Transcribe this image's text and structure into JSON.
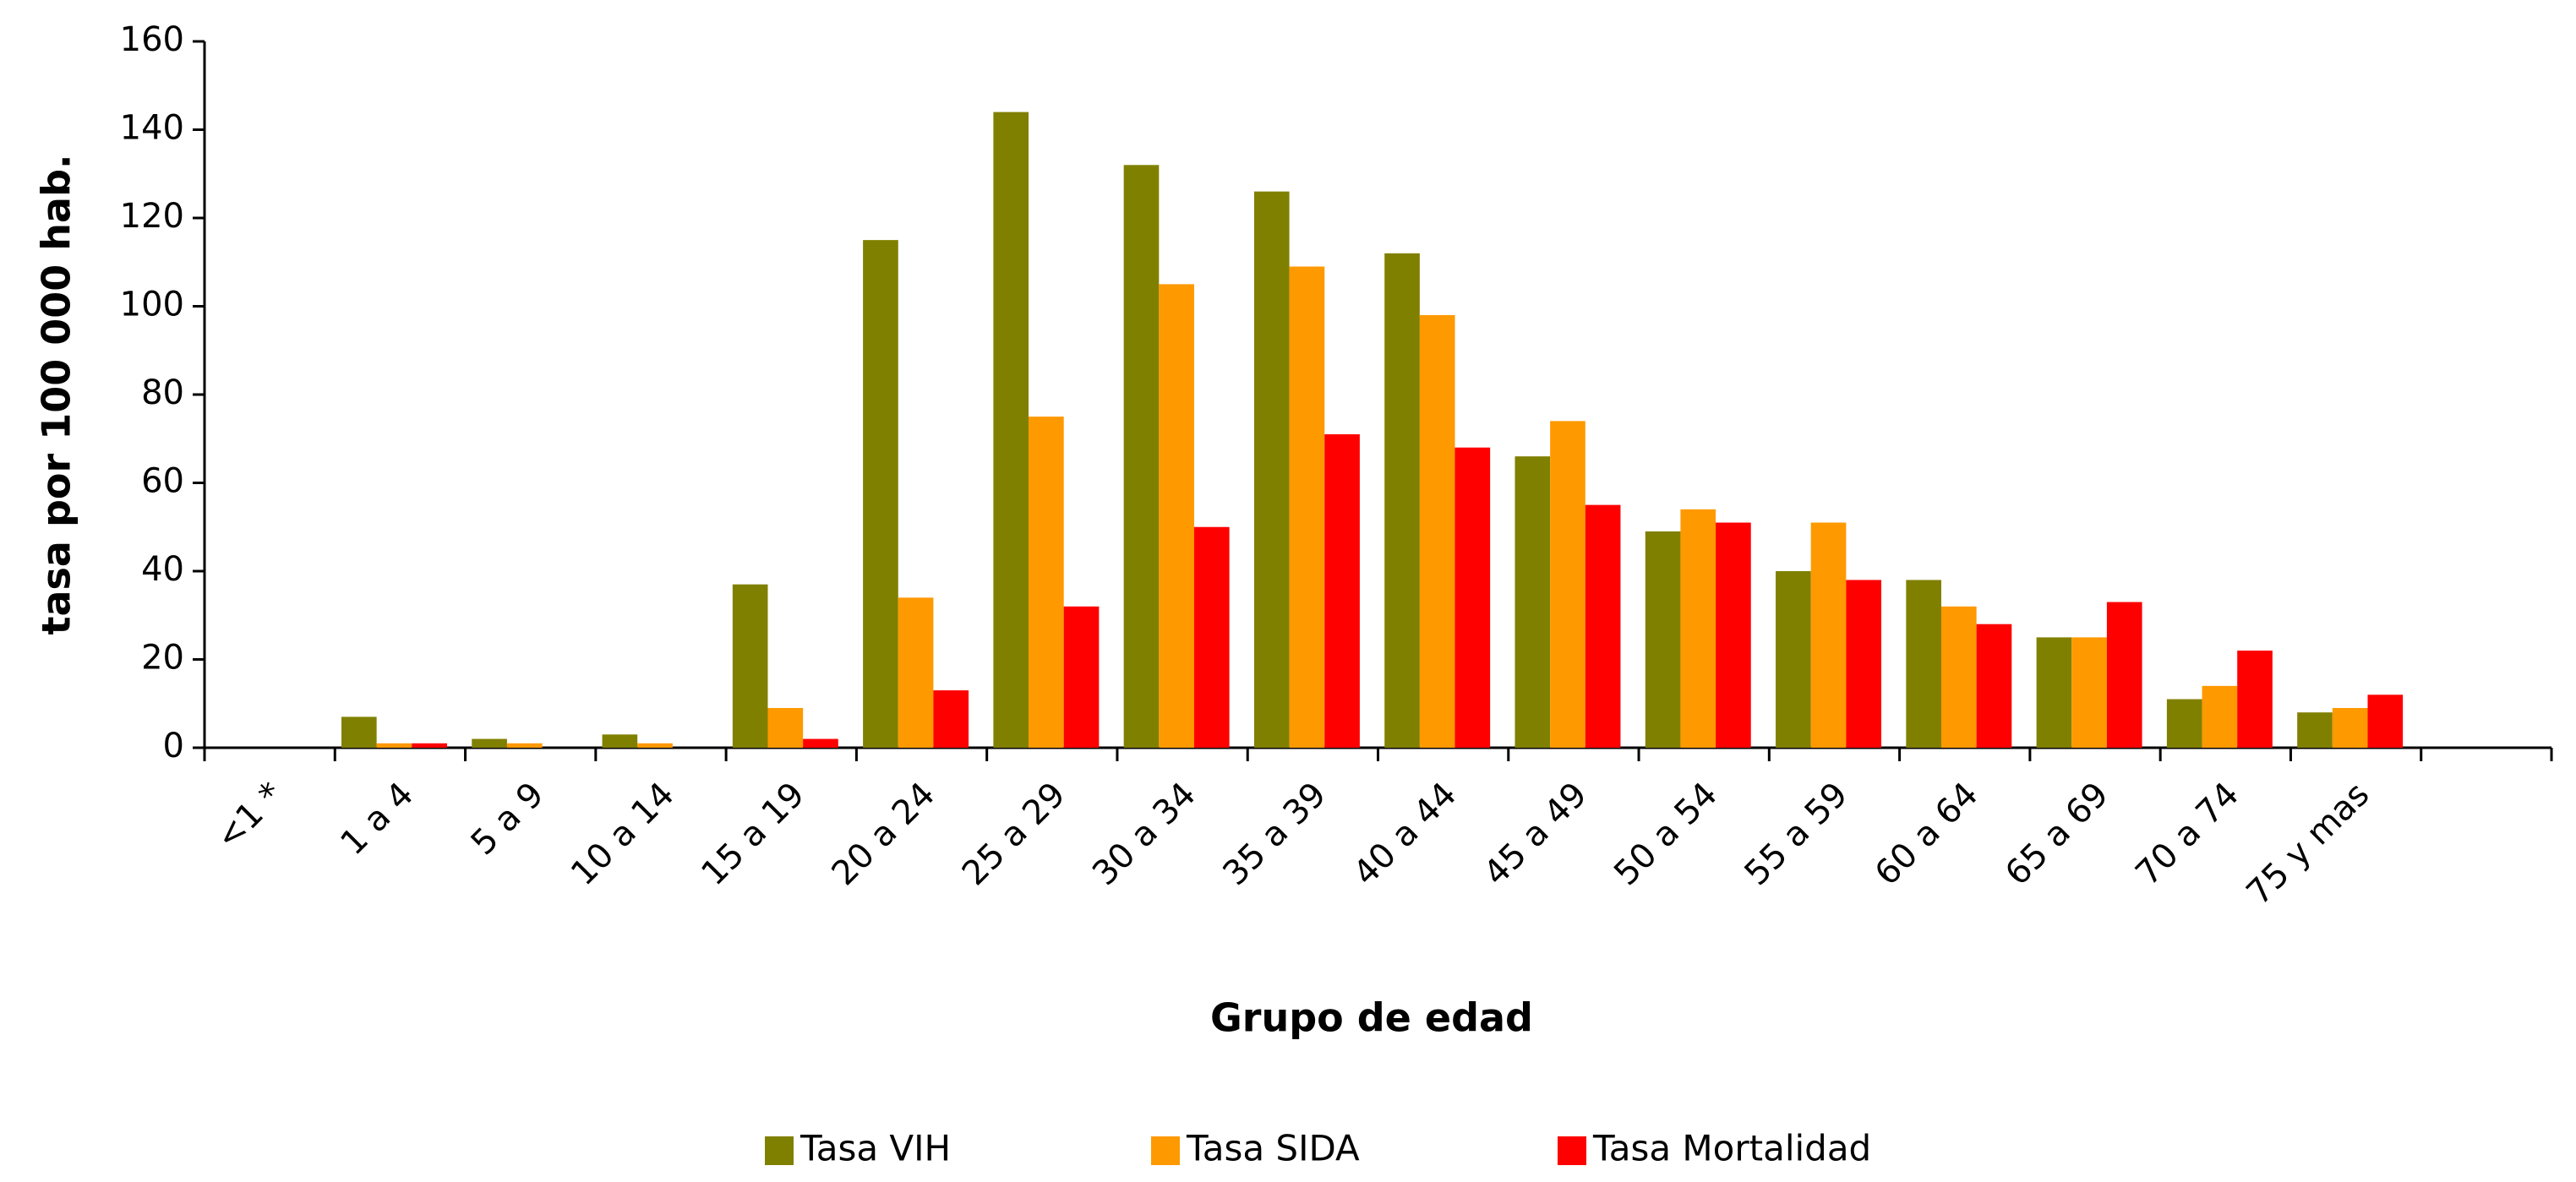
{
  "chart_data": {
    "type": "bar",
    "x_label": "Grupo de edad",
    "y_label": "tasa por 100 000 hab.",
    "categories": [
      "<1 *",
      "1 a 4",
      "5 a 9",
      "10 a 14",
      "15 a 19",
      "20 a 24",
      "25 a 29",
      "30 a 34",
      "35 a 39",
      "40 a 44",
      "45 a 49",
      "50 a 54",
      "55 a 59",
      "60 a 64",
      "65 a 69",
      "70 a 74",
      "75 y mas",
      null
    ],
    "series": [
      {
        "name": "Tasa VIH",
        "color": "#808000",
        "values": [
          0,
          7,
          2,
          3,
          37,
          115,
          144,
          132,
          126,
          112,
          66,
          49,
          40,
          38,
          25,
          11,
          8,
          null
        ]
      },
      {
        "name": "Tasa SIDA",
        "color": "#ff9900",
        "values": [
          0,
          1,
          1,
          1,
          9,
          34,
          75,
          105,
          109,
          98,
          74,
          54,
          51,
          32,
          25,
          14,
          9,
          null
        ]
      },
      {
        "name": "Tasa Mortalidad",
        "color": "#ff0000",
        "values": [
          0,
          1,
          0,
          0,
          2,
          13,
          32,
          50,
          71,
          68,
          55,
          51,
          38,
          28,
          33,
          22,
          12,
          null
        ]
      }
    ],
    "ylim": [
      0,
      160
    ],
    "yticks": [
      0,
      20,
      40,
      60,
      80,
      100,
      120,
      140,
      160
    ],
    "grid": false,
    "legend": "bottom"
  }
}
